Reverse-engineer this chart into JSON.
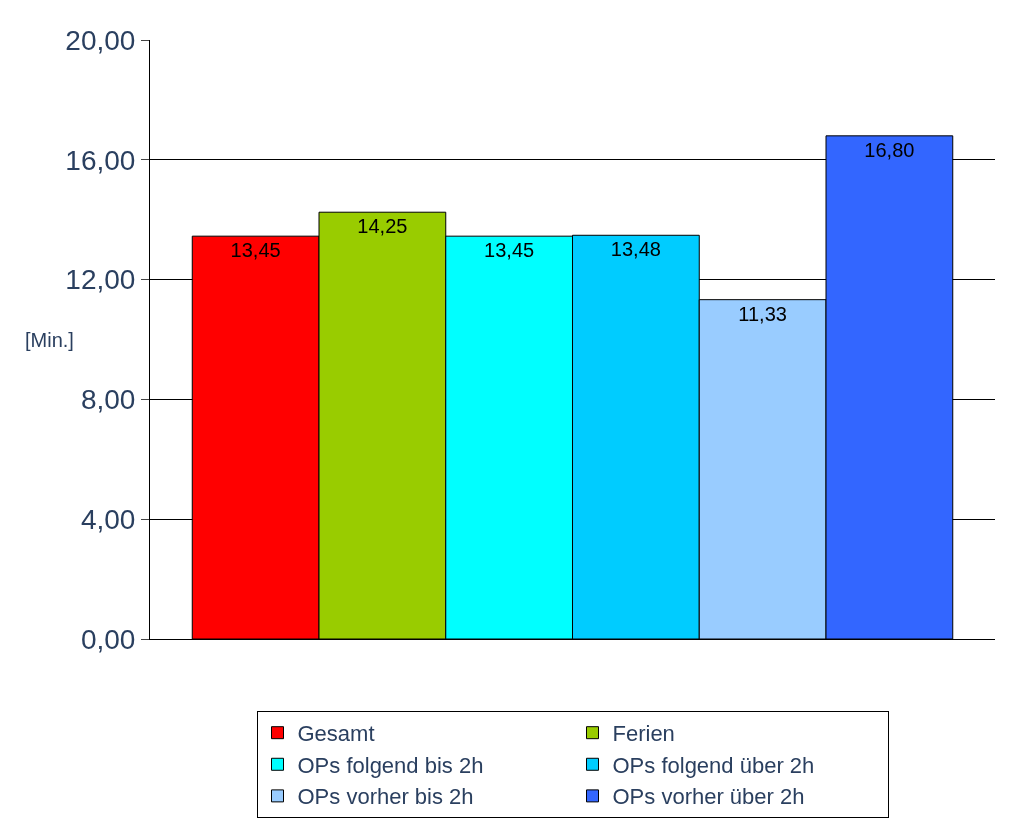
{
  "chart_data": {
    "type": "bar",
    "ylabel": "[Min.]",
    "categories": [
      null
    ],
    "series": [
      {
        "name": "Gesamt",
        "color": "#ff0000",
        "values": [
          13.45
        ],
        "value_labels": [
          "13,45"
        ]
      },
      {
        "name": "Ferien",
        "color": "#99cc00",
        "values": [
          14.25
        ],
        "value_labels": [
          "14,25"
        ]
      },
      {
        "name": "OPs folgend bis 2h",
        "color": "#00ffff",
        "values": [
          13.45
        ],
        "value_labels": [
          "13,45"
        ]
      },
      {
        "name": "OPs folgend über 2h",
        "color": "#00ccff",
        "values": [
          13.48
        ],
        "value_labels": [
          "13,48"
        ]
      },
      {
        "name": "OPs vorher bis 2h",
        "color": "#99ccff",
        "values": [
          11.33
        ],
        "value_labels": [
          "11,33"
        ]
      },
      {
        "name": "OPs vorher über 2h",
        "color": "#3366ff",
        "values": [
          16.8
        ],
        "value_labels": [
          "16,80"
        ]
      }
    ],
    "ylim": [
      0,
      20
    ],
    "yticks": [
      {
        "value": 0,
        "label": "0,00"
      },
      {
        "value": 4,
        "label": "4,00"
      },
      {
        "value": 8,
        "label": "8,00"
      },
      {
        "value": 12,
        "label": "12,00"
      },
      {
        "value": 16,
        "label": "16,00"
      },
      {
        "value": 20,
        "label": "20,00"
      }
    ],
    "grid": "y",
    "legend": "bottom"
  }
}
